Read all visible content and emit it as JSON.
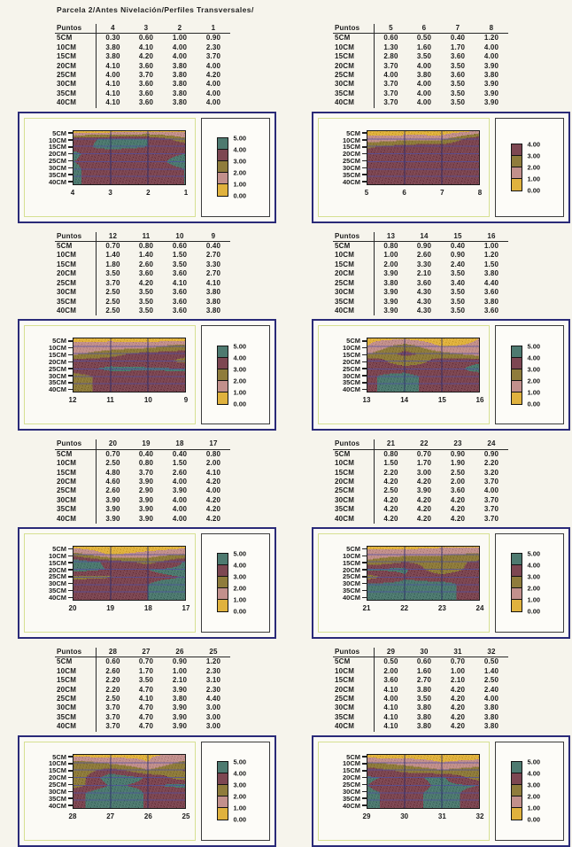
{
  "page_title": "Parcela 2/Antes Nivelación/Perfiles Transversales/",
  "table_header_label": "Puntos",
  "depth_labels": [
    "5CM",
    "10CM",
    "15CM",
    "20CM",
    "25CM",
    "30CM",
    "35CM",
    "40CM"
  ],
  "colors": {
    "band_colors": [
      "#e0b23e",
      "#c2908c",
      "#8f7c3c",
      "#7d4752",
      "#4e7a70"
    ],
    "band_meaning": [
      "0-1",
      "1-2",
      "2-3",
      "3-4",
      "4-5"
    ],
    "grid_horizontal": "#5050a5",
    "grid_vertical": "#282864",
    "chart_border": "#2a2a78",
    "chart_area_border": "#d6e092"
  },
  "chart_data": [
    {
      "type": "heatmap",
      "title": "",
      "x_categories": [
        "4",
        "3",
        "2",
        "1"
      ],
      "y_axis_note": "depths 5CM-40CM top to bottom",
      "values": [
        [
          "0.30",
          "0.60",
          "1.00",
          "0.90"
        ],
        [
          "3.80",
          "4.10",
          "4.00",
          "2.30"
        ],
        [
          "3.80",
          "4.20",
          "4.00",
          "3.70"
        ],
        [
          "4.10",
          "3.60",
          "3.80",
          "4.00"
        ],
        [
          "4.00",
          "3.70",
          "3.80",
          "4.20"
        ],
        [
          "4.10",
          "3.60",
          "3.80",
          "4.00"
        ],
        [
          "4.10",
          "3.60",
          "3.80",
          "4.00"
        ],
        [
          "4.10",
          "3.60",
          "3.80",
          "4.00"
        ]
      ],
      "legend_labels": [
        "5.00",
        "4.00",
        "3.00",
        "2.00",
        "1.00",
        "0.00"
      ],
      "vmax": 5
    },
    {
      "type": "heatmap",
      "title": "",
      "x_categories": [
        "5",
        "6",
        "7",
        "8"
      ],
      "y_axis_note": "depths 5CM-40CM top to bottom",
      "values": [
        [
          "0.60",
          "0.50",
          "0.40",
          "1.20"
        ],
        [
          "1.30",
          "1.60",
          "1.70",
          "4.00"
        ],
        [
          "2.80",
          "3.50",
          "3.60",
          "4.00"
        ],
        [
          "3.70",
          "4.00",
          "3.50",
          "3.90"
        ],
        [
          "4.00",
          "3.80",
          "3.60",
          "3.80"
        ],
        [
          "3.70",
          "4.00",
          "3.50",
          "3.90"
        ],
        [
          "3.70",
          "4.00",
          "3.50",
          "3.90"
        ],
        [
          "3.70",
          "4.00",
          "3.50",
          "3.90"
        ]
      ],
      "legend_labels": [
        "4.00",
        "3.00",
        "2.00",
        "1.00",
        "0.00"
      ],
      "vmax": 4
    },
    {
      "type": "heatmap",
      "title": "",
      "x_categories": [
        "12",
        "11",
        "10",
        "9"
      ],
      "y_axis_note": "depths 5CM-40CM top to bottom",
      "values": [
        [
          "0.70",
          "0.80",
          "0.60",
          "0.40"
        ],
        [
          "1.40",
          "1.40",
          "1.50",
          "2.70"
        ],
        [
          "1.80",
          "2.60",
          "3.50",
          "3.30"
        ],
        [
          "3.50",
          "3.60",
          "3.60",
          "2.70"
        ],
        [
          "3.70",
          "4.20",
          "4.10",
          "4.10"
        ],
        [
          "2.50",
          "3.50",
          "3.60",
          "3.80"
        ],
        [
          "2.50",
          "3.50",
          "3.60",
          "3.80"
        ],
        [
          "2.50",
          "3.50",
          "3.60",
          "3.80"
        ]
      ],
      "legend_labels": [
        "5.00",
        "4.00",
        "3.00",
        "2.00",
        "1.00",
        "0.00"
      ],
      "vmax": 5
    },
    {
      "type": "heatmap",
      "title": "",
      "x_categories": [
        "13",
        "14",
        "15",
        "16"
      ],
      "y_axis_note": "depths 5CM-40CM top to bottom",
      "values": [
        [
          "0.80",
          "0.90",
          "0.40",
          "1.00"
        ],
        [
          "1.00",
          "2.60",
          "0.90",
          "1.20"
        ],
        [
          "2.00",
          "3.30",
          "2.40",
          "1.50"
        ],
        [
          "3.90",
          "2.10",
          "3.50",
          "3.80"
        ],
        [
          "3.80",
          "3.60",
          "3.40",
          "4.40"
        ],
        [
          "3.90",
          "4.30",
          "3.50",
          "3.60"
        ],
        [
          "3.90",
          "4.30",
          "3.50",
          "3.80"
        ],
        [
          "3.90",
          "4.30",
          "3.50",
          "3.60"
        ]
      ],
      "legend_labels": [
        "5.00",
        "4.00",
        "3.00",
        "2.00",
        "1.00",
        "0.00"
      ],
      "vmax": 5
    },
    {
      "type": "heatmap",
      "title": "",
      "x_categories": [
        "20",
        "19",
        "18",
        "17"
      ],
      "y_axis_note": "depths 5CM-40CM top to bottom",
      "values": [
        [
          "0.70",
          "0.40",
          "0.40",
          "0.80"
        ],
        [
          "2.50",
          "0.80",
          "1.50",
          "2.00"
        ],
        [
          "4.80",
          "3.70",
          "2.60",
          "4.10"
        ],
        [
          "4.60",
          "3.90",
          "4.00",
          "4.20"
        ],
        [
          "2.60",
          "2.90",
          "3.90",
          "4.00"
        ],
        [
          "3.90",
          "3.90",
          "4.00",
          "4.20"
        ],
        [
          "3.90",
          "3.90",
          "4.00",
          "4.20"
        ],
        [
          "3.90",
          "3.90",
          "4.00",
          "4.20"
        ]
      ],
      "legend_labels": [
        "5.00",
        "4.00",
        "3.00",
        "2.00",
        "1.00",
        "0.00"
      ],
      "vmax": 5
    },
    {
      "type": "heatmap",
      "title": "",
      "x_categories": [
        "21",
        "22",
        "23",
        "24"
      ],
      "y_axis_note": "depths 5CM-40CM top to bottom",
      "values": [
        [
          "0.80",
          "0.70",
          "0.90",
          "0.90"
        ],
        [
          "1.50",
          "1.70",
          "1.90",
          "2.20"
        ],
        [
          "2.20",
          "3.00",
          "2.50",
          "3.20"
        ],
        [
          "4.20",
          "4.20",
          "2.00",
          "3.70"
        ],
        [
          "2.50",
          "3.90",
          "3.60",
          "4.00"
        ],
        [
          "4.20",
          "4.20",
          "4.20",
          "3.70"
        ],
        [
          "4.20",
          "4.20",
          "4.20",
          "3.70"
        ],
        [
          "4.20",
          "4.20",
          "4.20",
          "3.70"
        ]
      ],
      "legend_labels": [
        "5.00",
        "4.00",
        "3.00",
        "2.00",
        "1.00",
        "0.00"
      ],
      "vmax": 5
    },
    {
      "type": "heatmap",
      "title": "",
      "x_categories": [
        "28",
        "27",
        "26",
        "25"
      ],
      "y_axis_note": "depths 5CM-40CM top to bottom",
      "values": [
        [
          "0.60",
          "0.70",
          "0.90",
          "1.20"
        ],
        [
          "2.60",
          "1.70",
          "1.00",
          "2.30"
        ],
        [
          "2.20",
          "3.50",
          "2.10",
          "3.10"
        ],
        [
          "2.20",
          "4.70",
          "3.90",
          "2.30"
        ],
        [
          "2.50",
          "4.10",
          "3.80",
          "4.40"
        ],
        [
          "3.70",
          "4.70",
          "3.90",
          "3.00"
        ],
        [
          "3.70",
          "4.70",
          "3.90",
          "3.00"
        ],
        [
          "3.70",
          "4.70",
          "3.90",
          "3.00"
        ]
      ],
      "legend_labels": [
        "5.00",
        "4.00",
        "3.00",
        "2.00",
        "1.00",
        "0.00"
      ],
      "vmax": 5
    },
    {
      "type": "heatmap",
      "title": "",
      "x_categories": [
        "29",
        "30",
        "31",
        "32"
      ],
      "y_axis_note": "depths 5CM-40CM top to bottom",
      "values": [
        [
          "0.50",
          "0.60",
          "0.70",
          "0.50"
        ],
        [
          "2.00",
          "1.60",
          "1.00",
          "1.40"
        ],
        [
          "3.60",
          "2.70",
          "2.10",
          "2.50"
        ],
        [
          "4.10",
          "3.80",
          "4.20",
          "2.40"
        ],
        [
          "4.00",
          "3.50",
          "4.20",
          "4.00"
        ],
        [
          "4.10",
          "3.80",
          "4.20",
          "3.80"
        ],
        [
          "4.10",
          "3.80",
          "4.20",
          "3.80"
        ],
        [
          "4.10",
          "3.80",
          "4.20",
          "3.80"
        ]
      ],
      "legend_labels": [
        "5.00",
        "4.00",
        "3.00",
        "2.00",
        "1.00",
        "0.00"
      ],
      "vmax": 5
    }
  ]
}
